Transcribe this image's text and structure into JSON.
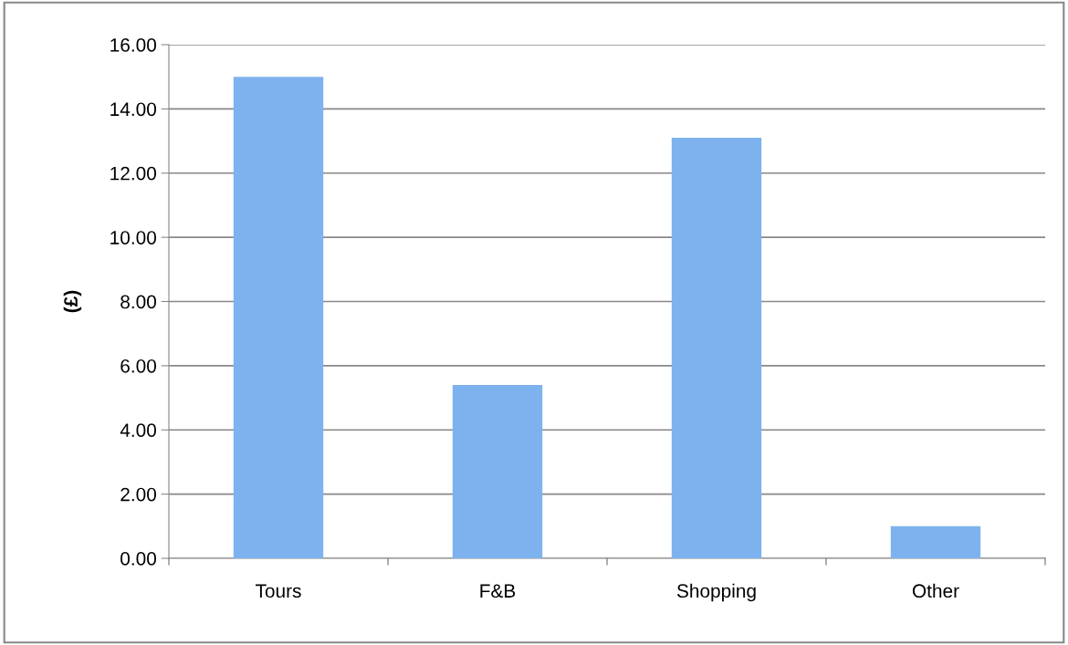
{
  "chart_data": {
    "type": "bar",
    "ylabel": "(£)",
    "categories": [
      "Tours",
      "F&B",
      "Shopping",
      "Other"
    ],
    "values": [
      15.0,
      5.4,
      13.1,
      1.0
    ],
    "color": "#7eb2ee",
    "ylim": [
      0,
      16
    ],
    "yticks": [
      {
        "value": 0,
        "label": "0.00"
      },
      {
        "value": 2,
        "label": "2.00"
      },
      {
        "value": 4,
        "label": "4.00"
      },
      {
        "value": 6,
        "label": "6.00"
      },
      {
        "value": 8,
        "label": "8.00"
      },
      {
        "value": 10,
        "label": "10.00"
      },
      {
        "value": 12,
        "label": "12.00"
      },
      {
        "value": 14,
        "label": "14.00"
      },
      {
        "value": 16,
        "label": "16.00"
      }
    ],
    "grid": "y",
    "legend": false
  }
}
